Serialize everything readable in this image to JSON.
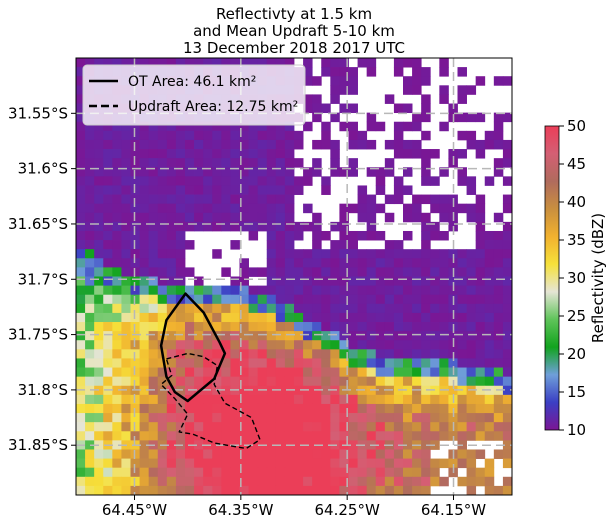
{
  "chart_data": {
    "type": "heatmap",
    "title": [
      "Reflectivty at 1.5 km",
      "and Mean Updraft 5-10 km",
      "13 December 2018 2017 UTC"
    ],
    "x_axis": {
      "label": "",
      "ticks": [
        -64.45,
        -64.35,
        -64.25,
        -64.15
      ],
      "tick_labels": [
        "64.45°W",
        "64.35°W",
        "64.25°W",
        "64.15°W"
      ],
      "range": [
        -64.505,
        -64.095
      ]
    },
    "y_axis": {
      "label": "",
      "ticks": [
        -31.55,
        -31.6,
        -31.65,
        -31.7,
        -31.75,
        -31.8,
        -31.85
      ],
      "tick_labels": [
        "31.55°S",
        "31.6°S",
        "31.65°S",
        "31.7°S",
        "31.75°S",
        "31.8°S",
        "31.85°S"
      ],
      "range": [
        -31.895,
        -31.5
      ]
    },
    "grid": true,
    "colorbar": {
      "label": "Reflectivity (dBZ)",
      "range": [
        10,
        50
      ],
      "ticks": [
        10,
        15,
        20,
        25,
        30,
        35,
        40,
        45,
        50
      ],
      "tick_labels": [
        "10",
        "15",
        "20",
        "25",
        "30",
        "35",
        "40",
        "45",
        "50"
      ],
      "colors": [
        "#7b1694",
        "#3b3fc4",
        "#6f9fd9",
        "#12a31e",
        "#5fc45a",
        "#e5e5d5",
        "#f6e13a",
        "#f1b12f",
        "#c98f3f",
        "#b06b5d",
        "#d45f74",
        "#eb3e58"
      ]
    },
    "legend": {
      "placement": "top-left",
      "entries": [
        {
          "label": "OT Area: 46.1 km²",
          "style": "solid"
        },
        {
          "label": "Updraft Area: 12.75 km²",
          "style": "dashed"
        }
      ]
    },
    "ot_contour": [
      [
        -64.402,
        -31.713
      ],
      [
        -64.385,
        -31.73
      ],
      [
        -64.37,
        -31.757
      ],
      [
        -64.365,
        -31.767
      ],
      [
        -64.375,
        -31.79
      ],
      [
        -64.4,
        -31.81
      ],
      [
        -64.412,
        -31.802
      ],
      [
        -64.42,
        -31.788
      ],
      [
        -64.425,
        -31.76
      ],
      [
        -64.42,
        -31.737
      ],
      [
        -64.402,
        -31.713
      ]
    ],
    "updraft_contour": [
      [
        -64.42,
        -31.772
      ],
      [
        -64.4,
        -31.767
      ],
      [
        -64.385,
        -31.77
      ],
      [
        -64.372,
        -31.778
      ],
      [
        -64.375,
        -31.795
      ],
      [
        -64.365,
        -31.812
      ],
      [
        -64.34,
        -31.825
      ],
      [
        -64.332,
        -31.845
      ],
      [
        -64.345,
        -31.853
      ],
      [
        -64.375,
        -31.848
      ],
      [
        -64.395,
        -31.84
      ],
      [
        -64.408,
        -31.838
      ],
      [
        -64.4,
        -31.822
      ],
      [
        -64.412,
        -31.808
      ],
      [
        -64.425,
        -31.795
      ],
      [
        -64.415,
        -31.787
      ],
      [
        -64.42,
        -31.772
      ]
    ]
  }
}
